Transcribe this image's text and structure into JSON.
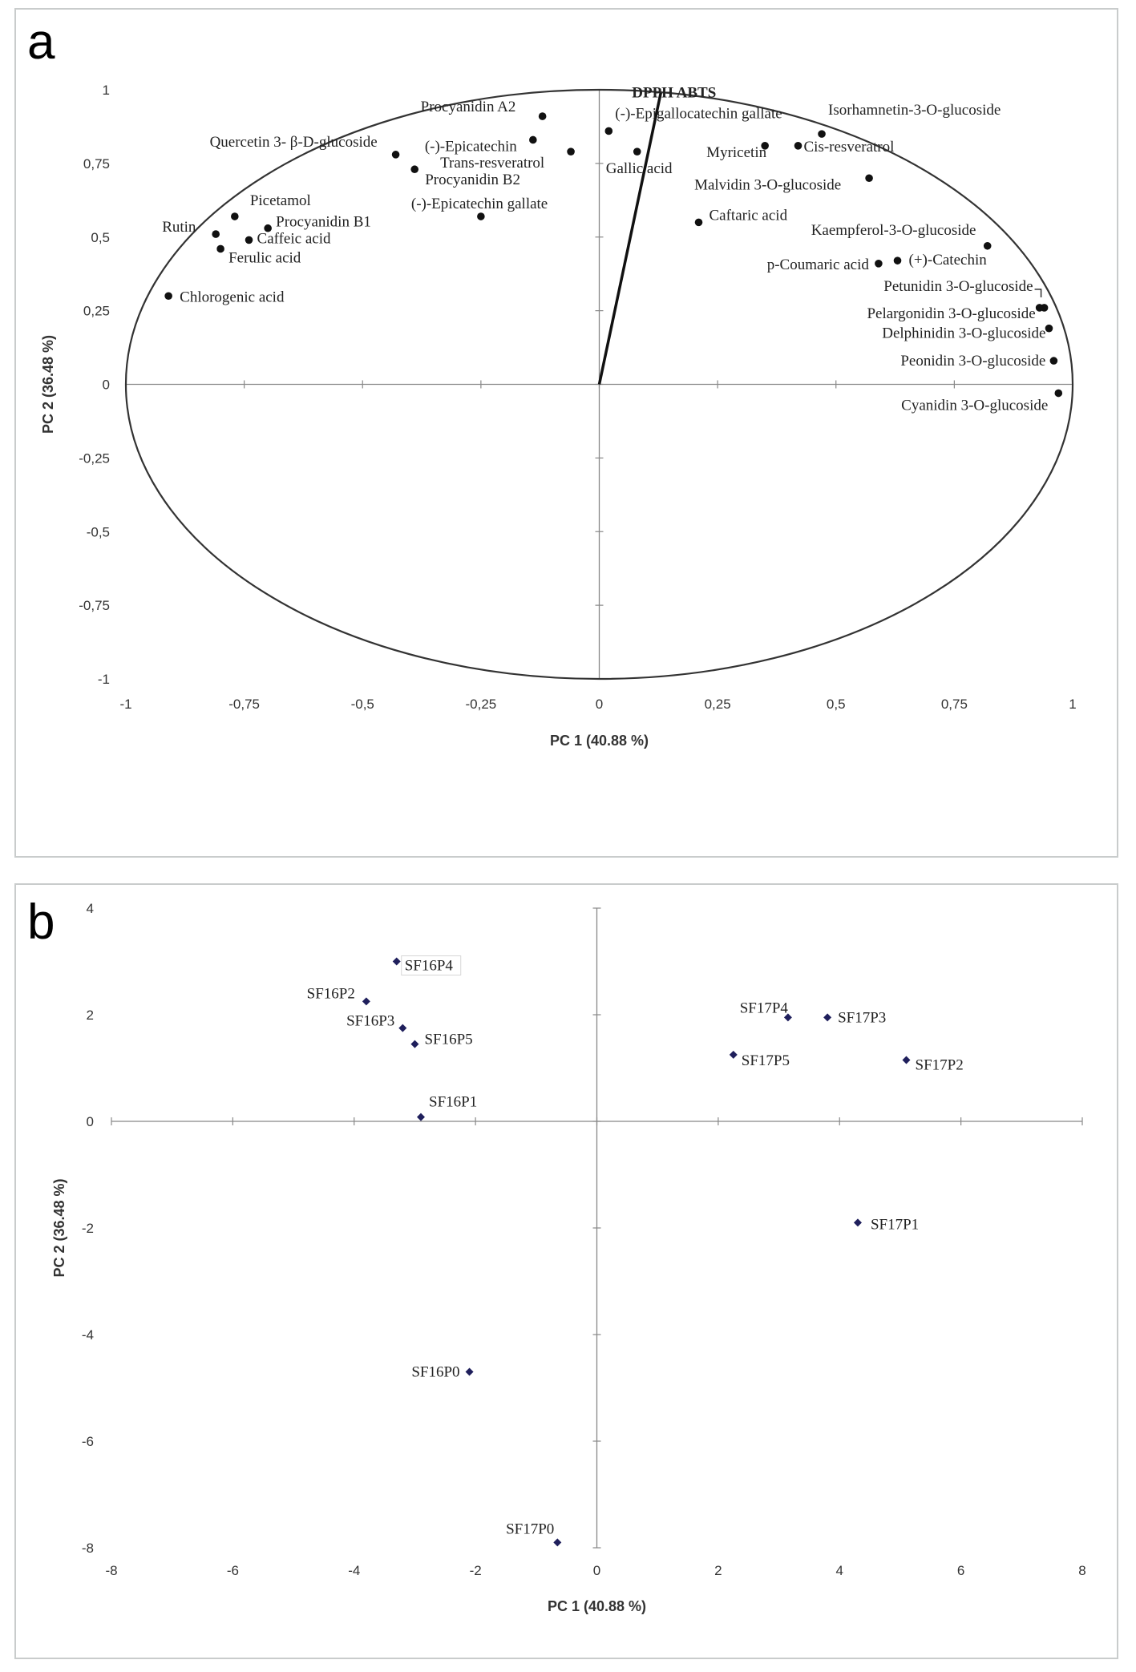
{
  "panels": {
    "a": "a",
    "b": "b"
  },
  "chart_data": [
    {
      "type": "scatter",
      "panel": "a",
      "xlabel": "PC 1 (40.88 %)",
      "ylabel": "PC 2 (36.48 %)",
      "xlim": [
        -1,
        1
      ],
      "ylim": [
        -1,
        1
      ],
      "xticks": [
        -1,
        -0.75,
        -0.5,
        -0.25,
        0,
        0.25,
        0.5,
        0.75,
        1
      ],
      "yticks": [
        -1,
        -0.75,
        -0.5,
        -0.25,
        0,
        0.25,
        0.5,
        0.75,
        1
      ],
      "xtick_labels": [
        "-1",
        "-0,75",
        "-0,5",
        "-0,25",
        "0",
        "0,25",
        "0,5",
        "0,75",
        "1"
      ],
      "ytick_labels": [
        "-1",
        "-0,75",
        "-0,5",
        "-0,25",
        "0",
        "0,25",
        "0,5",
        "0,75",
        "1"
      ],
      "correlation_circle": true,
      "vector": {
        "label": "DPPH ABTS",
        "x": 0.13,
        "y": 0.99
      },
      "points": [
        {
          "label": "Procyanidin A2",
          "x": -0.12,
          "y": 0.91
        },
        {
          "label": "(-)-Epicatechin",
          "x": -0.14,
          "y": 0.83
        },
        {
          "label": "Quercetin 3- β-D-glucoside",
          "x": -0.43,
          "y": 0.78
        },
        {
          "label": "Trans-resveratrol",
          "x": -0.06,
          "y": 0.79
        },
        {
          "label": "Procyanidin B2",
          "x": -0.39,
          "y": 0.73
        },
        {
          "label": "(-)-Epicatechin gallate",
          "x": -0.25,
          "y": 0.57
        },
        {
          "label": "Rutin",
          "x": -0.81,
          "y": 0.51
        },
        {
          "label": "Picetamol",
          "x": -0.77,
          "y": 0.57
        },
        {
          "label": "Procyanidin B1",
          "x": -0.7,
          "y": 0.53
        },
        {
          "label": "Caffeic acid",
          "x": -0.74,
          "y": 0.49
        },
        {
          "label": "Ferulic acid",
          "x": -0.8,
          "y": 0.46
        },
        {
          "label": "Chlorogenic acid",
          "x": -0.91,
          "y": 0.3
        },
        {
          "label": "(-)-Epigallocatechin gallate",
          "x": 0.02,
          "y": 0.86
        },
        {
          "label": "Gallic acid",
          "x": 0.08,
          "y": 0.79
        },
        {
          "label": "Myricetin",
          "x": 0.35,
          "y": 0.81
        },
        {
          "label": "Cis-resveratrol",
          "x": 0.42,
          "y": 0.81
        },
        {
          "label": "Isorhamnetin-3-O-glucoside",
          "x": 0.47,
          "y": 0.85
        },
        {
          "label": "Malvidin 3-O-glucoside",
          "x": 0.57,
          "y": 0.7
        },
        {
          "label": "Caftaric acid",
          "x": 0.21,
          "y": 0.55
        },
        {
          "label": "Kaempferol-3-O-glucoside",
          "x": 0.82,
          "y": 0.47
        },
        {
          "label": "p-Coumaric acid",
          "x": 0.59,
          "y": 0.41
        },
        {
          "label": "(+)-Catechin",
          "x": 0.63,
          "y": 0.42
        },
        {
          "label": "Petunidin 3-O-glucoside",
          "x": 0.94,
          "y": 0.26
        },
        {
          "label": "Pelargonidin 3-O-glucoside",
          "x": 0.93,
          "y": 0.26
        },
        {
          "label": "Delphinidin 3-O-glucoside",
          "x": 0.95,
          "y": 0.19
        },
        {
          "label": "Peonidin 3-O-glucoside",
          "x": 0.96,
          "y": 0.08
        },
        {
          "label": "Cyanidin 3-O-glucoside",
          "x": 0.97,
          "y": -0.03
        }
      ]
    },
    {
      "type": "scatter",
      "panel": "b",
      "xlabel": "PC 1 (40.88 %)",
      "ylabel": "PC 2 (36.48 %)",
      "xlim": [
        -8,
        8
      ],
      "ylim": [
        -8,
        4
      ],
      "xticks": [
        -8,
        -6,
        -4,
        -2,
        0,
        2,
        4,
        6,
        8
      ],
      "yticks": [
        -8,
        -6,
        -4,
        -2,
        0,
        2,
        4
      ],
      "xtick_labels": [
        "-8",
        "-6",
        "-4",
        "-2",
        "0",
        "2",
        "4",
        "6",
        "8"
      ],
      "ytick_labels": [
        "-8",
        "-6",
        "-4",
        "-2",
        "0",
        "2",
        "4"
      ],
      "points": [
        {
          "label": "SF16P4",
          "x": -3.3,
          "y": 3.0
        },
        {
          "label": "SF16P2",
          "x": -3.8,
          "y": 2.25
        },
        {
          "label": "SF16P3",
          "x": -3.2,
          "y": 1.75
        },
        {
          "label": "SF16P5",
          "x": -3.0,
          "y": 1.45
        },
        {
          "label": "SF16P1",
          "x": -2.9,
          "y": 0.08
        },
        {
          "label": "SF17P4",
          "x": 3.15,
          "y": 1.95
        },
        {
          "label": "SF17P3",
          "x": 3.8,
          "y": 1.95
        },
        {
          "label": "SF17P5",
          "x": 2.25,
          "y": 1.25
        },
        {
          "label": "SF17P2",
          "x": 5.1,
          "y": 1.15
        },
        {
          "label": "SF17P1",
          "x": 4.3,
          "y": -1.9
        },
        {
          "label": "SF16P0",
          "x": -2.1,
          "y": -4.7
        },
        {
          "label": "SF17P0",
          "x": -0.65,
          "y": -7.9
        }
      ]
    }
  ]
}
